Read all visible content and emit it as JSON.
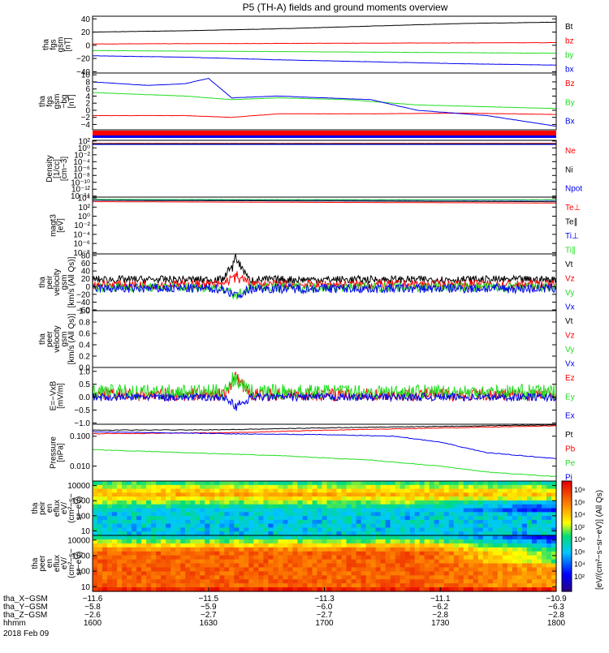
{
  "title": "P5 (TH-A) fields and ground moments overview",
  "date": "2018 Feb 09",
  "colors": {
    "black": "#000000",
    "red": "#ff0000",
    "green": "#22dd22",
    "blue": "#0000ee"
  },
  "chart_data": {
    "type": "line",
    "panels": [
      {
        "id": "fgs-gsm",
        "ylabel": [
          "tha",
          "fgs",
          "gsm",
          "[nT]"
        ],
        "scale": "linear",
        "yticks": [
          "40",
          "20",
          "0",
          "−20",
          "−40"
        ],
        "ytick_values": [
          40,
          20,
          0,
          -20,
          -40
        ],
        "ylim": [
          -42,
          44
        ],
        "series": [
          {
            "name": "Bt",
            "color": "black",
            "points": [
              [
                0,
                20
              ],
              [
                0.2,
                22
              ],
              [
                0.4,
                25
              ],
              [
                0.6,
                29
              ],
              [
                0.8,
                33
              ],
              [
                1,
                35
              ]
            ]
          },
          {
            "name": "bz",
            "color": "red",
            "points": [
              [
                0,
                2
              ],
              [
                0.5,
                3
              ],
              [
                1,
                4
              ]
            ]
          },
          {
            "name": "by",
            "color": "green",
            "points": [
              [
                0,
                -8
              ],
              [
                0.5,
                -10
              ],
              [
                1,
                -12
              ]
            ]
          },
          {
            "name": "bx",
            "color": "blue",
            "points": [
              [
                0,
                -16
              ],
              [
                0.2,
                -18
              ],
              [
                0.4,
                -22
              ],
              [
                0.6,
                -25
              ],
              [
                0.8,
                -28
              ],
              [
                1,
                -30
              ]
            ]
          }
        ]
      },
      {
        "id": "fgs-gsm-dc",
        "ylabel": [
          "tha",
          "fgs",
          "gsm",
          "−bg",
          "[nT]"
        ],
        "scale": "linear",
        "yticks": [
          "10",
          "8",
          "6",
          "4",
          "2",
          "0",
          "−2",
          "−4"
        ],
        "ytick_values": [
          10,
          8,
          6,
          4,
          2,
          0,
          -2,
          -4
        ],
        "ylim": [
          -5.5,
          10.5
        ],
        "series": [
          {
            "name": "Bz",
            "color": "red",
            "points": [
              [
                0,
                -1.5
              ],
              [
                0.2,
                -1.5
              ],
              [
                0.3,
                -2.0
              ],
              [
                0.4,
                -1.0
              ],
              [
                0.6,
                -1.0
              ],
              [
                0.8,
                -0.8
              ],
              [
                1,
                -1.2
              ]
            ]
          },
          {
            "name": "By",
            "color": "green",
            "points": [
              [
                0,
                5.0
              ],
              [
                0.2,
                4.0
              ],
              [
                0.3,
                3.0
              ],
              [
                0.4,
                3.5
              ],
              [
                0.55,
                3.0
              ],
              [
                0.7,
                1.5
              ],
              [
                0.85,
                1.0
              ],
              [
                1,
                0.5
              ]
            ]
          },
          {
            "name": "Bx",
            "color": "blue",
            "points": [
              [
                0,
                8.0
              ],
              [
                0.12,
                7.0
              ],
              [
                0.2,
                7.5
              ],
              [
                0.25,
                9.0
              ],
              [
                0.3,
                3.5
              ],
              [
                0.4,
                4.0
              ],
              [
                0.6,
                3.0
              ],
              [
                0.7,
                0
              ],
              [
                0.85,
                -1.5
              ],
              [
                1,
                -4.5
              ]
            ]
          }
        ]
      },
      {
        "id": "density",
        "ylabel": [
          "Density",
          "[1/cc]",
          "[cm−3]"
        ],
        "scale": "log",
        "yticks": [
          "10²",
          "10⁰",
          "10⁻²",
          "10⁻⁴",
          "10⁻⁶",
          "10⁻⁸",
          "10⁻¹⁰",
          "10⁻¹²",
          "10⁻¹⁴"
        ],
        "ytick_values": [
          2,
          0,
          -2,
          -4,
          -6,
          -8,
          -10,
          -12,
          -14
        ],
        "ylim": [
          -14.3,
          2.2
        ],
        "series": [
          {
            "name": "Ne",
            "color": "red",
            "points": [
              [
                0,
                1.3
              ],
              [
                1,
                1.3
              ]
            ]
          },
          {
            "name": "Ni",
            "color": "black",
            "points": [
              [
                0,
                1.2
              ],
              [
                1,
                1.2
              ]
            ]
          },
          {
            "name": "Npot",
            "color": "blue",
            "points": [
              [
                0,
                1.0
              ],
              [
                1,
                1.0
              ]
            ]
          }
        ]
      },
      {
        "id": "temperature",
        "ylabel": [
          "magt3",
          "[eV]"
        ],
        "scale": "log",
        "yticks": [
          "10⁴",
          "10²",
          "10⁰",
          "10⁻²",
          "10⁻⁴",
          "10⁻⁶",
          "10⁻⁸"
        ],
        "ytick_values": [
          4,
          2,
          0,
          -2,
          -4,
          -6,
          -8
        ],
        "ylim": [
          -8.3,
          4.2
        ],
        "series": [
          {
            "name": "Te⊥",
            "color": "red",
            "points": [
              [
                0,
                3.2
              ],
              [
                1,
                2.9
              ]
            ]
          },
          {
            "name": "Te∥",
            "color": "black",
            "points": [
              [
                0,
                3.5
              ],
              [
                1,
                3.2
              ]
            ]
          },
          {
            "name": "Ti⊥",
            "color": "blue",
            "points": [
              [
                0,
                3.6
              ],
              [
                1,
                3.5
              ]
            ]
          },
          {
            "name": "Ti∥",
            "color": "green",
            "points": [
              [
                0,
                3.7
              ],
              [
                1,
                3.6
              ]
            ]
          }
        ]
      },
      {
        "id": "peir-velocity",
        "ylabel": [
          "tha",
          "peir",
          "velocity",
          "gsm",
          "[km/s (All Qs)]"
        ],
        "scale": "linear",
        "yticks": [
          "80",
          "60",
          "40",
          "20",
          "0",
          "−20",
          "−40",
          "−60"
        ],
        "ytick_values": [
          80,
          60,
          40,
          20,
          0,
          -20,
          -40,
          -60
        ],
        "ylim": [
          -62,
          84
        ],
        "series": [
          {
            "name": "Vt",
            "color": "black",
            "level": 18,
            "amp": 10,
            "spike": 70
          },
          {
            "name": "Vz",
            "color": "red",
            "level": 5,
            "amp": 12,
            "spike": 30
          },
          {
            "name": "Vy",
            "color": "green",
            "level": -2,
            "amp": 12,
            "spike": -30
          },
          {
            "name": "Vx",
            "color": "blue",
            "level": -5,
            "amp": 12,
            "spike": -25
          }
        ]
      },
      {
        "id": "peer-velocity",
        "ylabel": [
          "tha",
          "peer",
          "velocity",
          "gsm",
          "[km/s (All Qs)]"
        ],
        "scale": "linear",
        "yticks": [
          "1.0",
          "0.8",
          "0.6",
          "0.4",
          "0.2",
          "0.0"
        ],
        "ytick_values": [
          1.0,
          0.8,
          0.6,
          0.4,
          0.2,
          0.0
        ],
        "ylim": [
          0,
          1.0
        ],
        "series": [
          {
            "name": "Vt",
            "color": "black"
          },
          {
            "name": "Vz",
            "color": "red"
          },
          {
            "name": "Vy",
            "color": "green"
          },
          {
            "name": "Vx",
            "color": "blue"
          }
        ]
      },
      {
        "id": "efield",
        "ylabel": [
          "E=−VxB",
          "[mV/m]"
        ],
        "scale": "linear",
        "yticks": [
          "1.0",
          "0.5",
          "0.0",
          "−0.5",
          "−1.0"
        ],
        "ytick_values": [
          1.0,
          0.5,
          0.0,
          -0.5,
          -1.0
        ],
        "ylim": [
          -1.05,
          1.15
        ],
        "series": [
          {
            "name": "Ez",
            "color": "red",
            "level": 0.1,
            "amp": 0.25,
            "spike": 0.9
          },
          {
            "name": "Ey",
            "color": "green",
            "level": 0.2,
            "amp": 0.3,
            "spike": 0.7
          },
          {
            "name": "Ex",
            "color": "blue",
            "level": 0.0,
            "amp": 0.15,
            "spike": -0.5
          }
        ]
      },
      {
        "id": "pressure",
        "ylabel": [
          "Pressure",
          "[nPa]"
        ],
        "scale": "log",
        "yticks": [
          "0.100",
          "0.010"
        ],
        "ytick_values": [
          -1,
          -2
        ],
        "ylim": [
          -2.5,
          -0.6
        ],
        "series": [
          {
            "name": "Pt",
            "color": "black",
            "points": [
              [
                0,
                -0.8
              ],
              [
                0.3,
                -0.78
              ],
              [
                0.5,
                -0.72
              ],
              [
                0.7,
                -0.68
              ],
              [
                1,
                -0.62
              ]
            ]
          },
          {
            "name": "Pb",
            "color": "red",
            "points": [
              [
                0,
                -0.92
              ],
              [
                0.3,
                -0.88
              ],
              [
                0.5,
                -0.8
              ],
              [
                0.7,
                -0.74
              ],
              [
                1,
                -0.65
              ]
            ]
          },
          {
            "name": "Pe",
            "color": "green",
            "points": [
              [
                0,
                -1.45
              ],
              [
                0.2,
                -1.55
              ],
              [
                0.4,
                -1.65
              ],
              [
                0.6,
                -1.8
              ],
              [
                0.75,
                -2.0
              ],
              [
                0.85,
                -2.2
              ],
              [
                1,
                -2.35
              ]
            ]
          },
          {
            "name": "Pi",
            "color": "blue",
            "points": [
              [
                0,
                -0.85
              ],
              [
                0.3,
                -0.92
              ],
              [
                0.5,
                -0.95
              ],
              [
                0.65,
                -1.0
              ],
              [
                0.75,
                -1.2
              ],
              [
                0.85,
                -1.55
              ],
              [
                1,
                -1.75
              ]
            ]
          }
        ]
      },
      {
        "id": "peir-spectrogram",
        "type": "heatmap",
        "ylabel": [
          "tha",
          "peir",
          "en",
          "eflux",
          "eV/",
          "(cm²−s−",
          "sr−eV)"
        ],
        "yticks": [
          "10000",
          "1000",
          "100",
          "10"
        ],
        "ytick_values": [
          4,
          3,
          2,
          1
        ],
        "ylim": [
          0.7,
          4.3
        ]
      },
      {
        "id": "peer-spectrogram",
        "type": "heatmap",
        "ylabel": [
          "tha",
          "peer",
          "en",
          "eflux",
          "eV/",
          "(cm²−s−",
          "sr−eV)"
        ],
        "yticks": [
          "10000",
          "1000",
          "100",
          "10"
        ],
        "ytick_values": [
          4,
          3,
          2,
          1
        ],
        "ylim": [
          0.7,
          4.3
        ]
      }
    ],
    "colorbar": {
      "ticks": [
        "10⁸",
        "10⁶",
        "10⁴",
        "10²",
        "10⁸",
        "10⁶",
        "10⁴",
        "10²"
      ],
      "label": "[eV/(cm²−s−sr−eV)] (All Qs)"
    },
    "x_axis": {
      "rows": [
        {
          "label": "tha_X−GSM",
          "values": [
            "−11.6",
            "−11.5",
            "−11.3",
            "−11.1",
            "−10.9"
          ]
        },
        {
          "label": "tha_Y−GSM",
          "values": [
            "−5.8",
            "−5.9",
            "−6.0",
            "−6.2",
            "−6.3"
          ]
        },
        {
          "label": "tha_Z−GSM",
          "values": [
            "−2.6",
            "−2.7",
            "−2.7",
            "−2.8",
            "−2.8"
          ]
        },
        {
          "label": "hhmm",
          "values": [
            "1600",
            "1630",
            "1700",
            "1730",
            "1800"
          ]
        }
      ]
    }
  }
}
